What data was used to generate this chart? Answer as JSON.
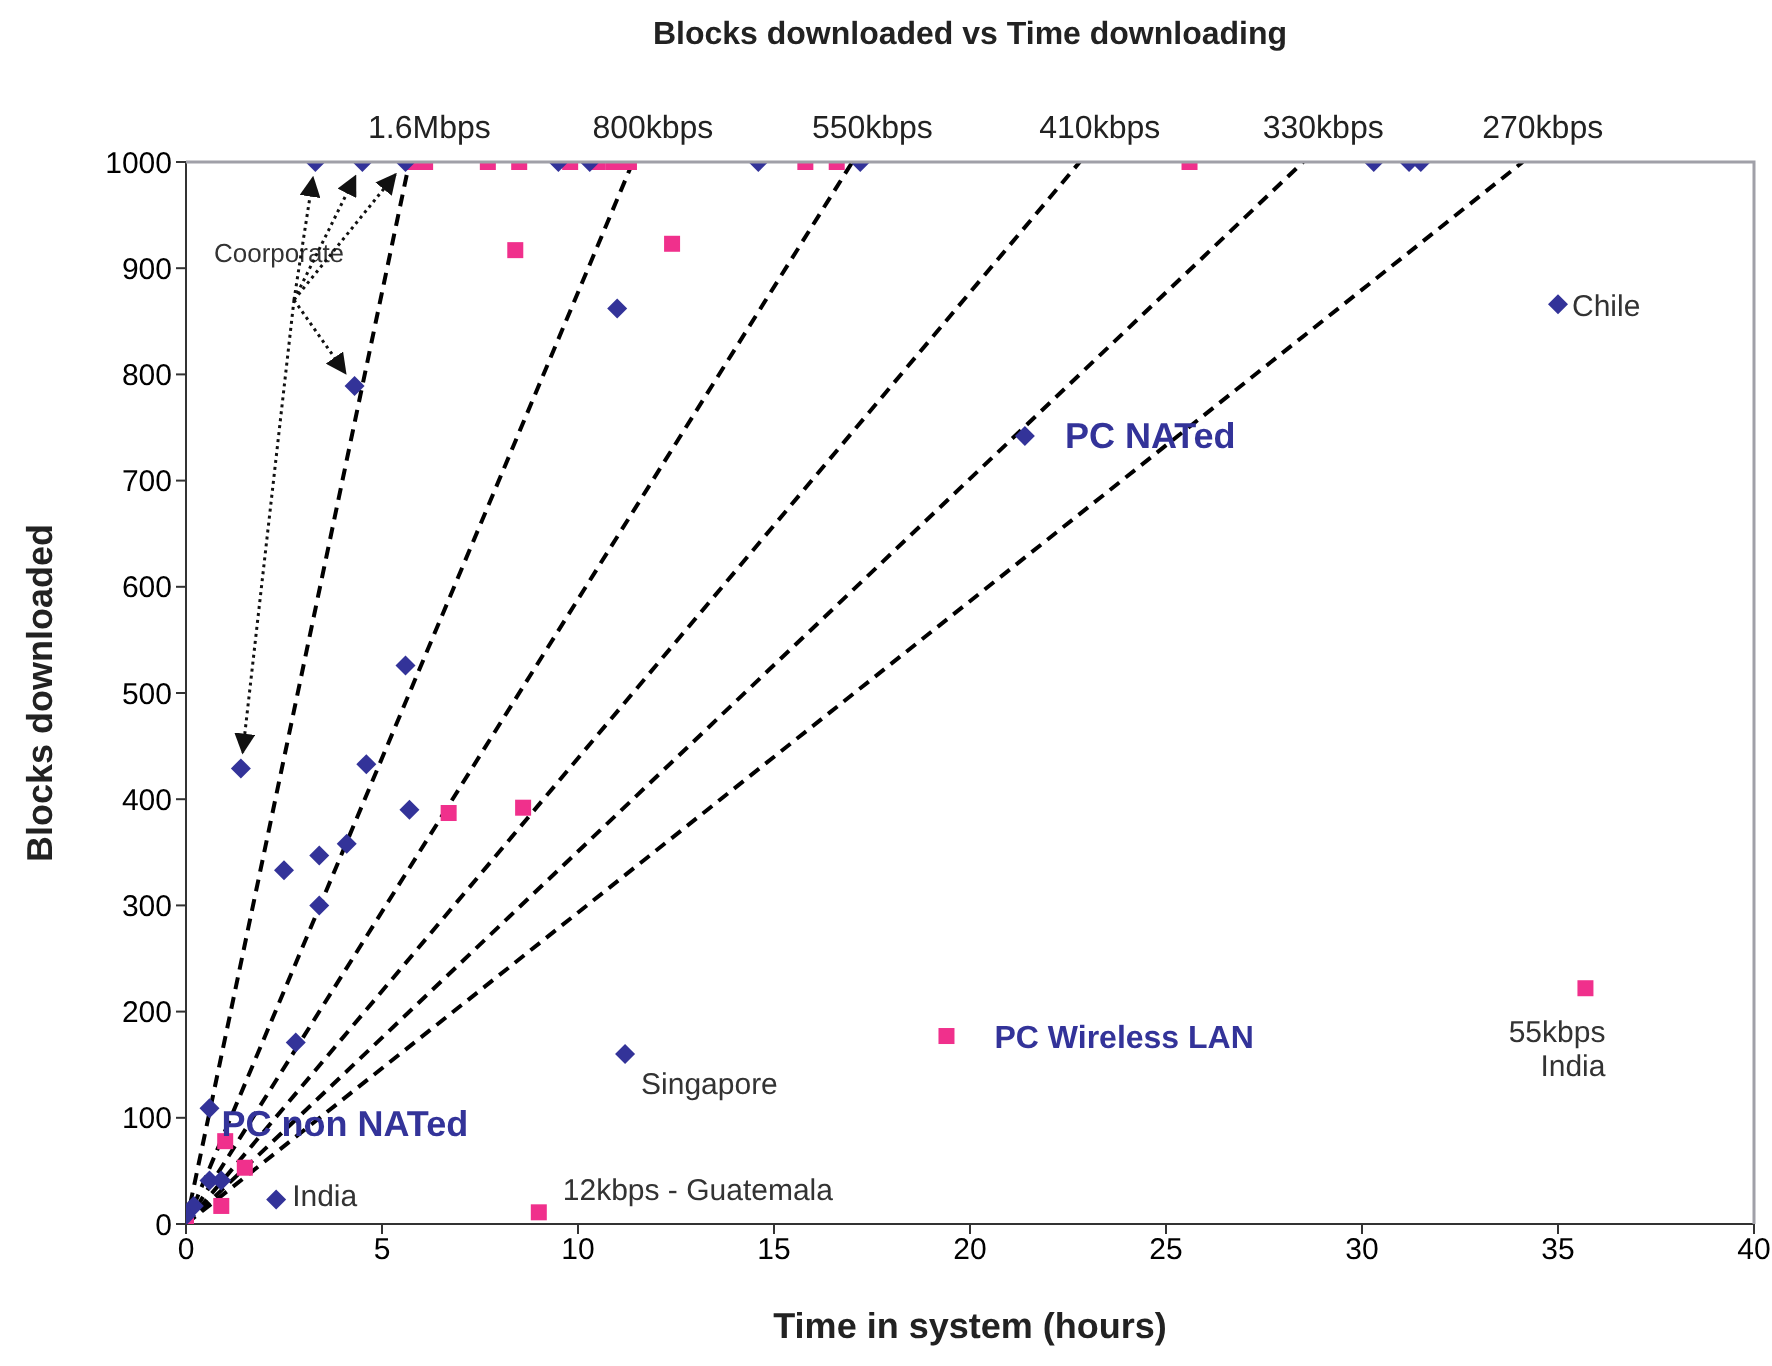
{
  "chart_data": {
    "type": "scatter",
    "title": "Blocks downloaded vs Time downloading",
    "xlabel": "Time in system (hours)",
    "ylabel": "Blocks downloaded",
    "xlim": [
      0,
      40
    ],
    "xticks": [
      0,
      5,
      10,
      15,
      20,
      25,
      30,
      35,
      40
    ],
    "ylim": [
      0,
      1000
    ],
    "yticks": [
      0,
      100,
      200,
      300,
      400,
      500,
      600,
      700,
      800,
      900,
      1000
    ],
    "grid": false,
    "legend": false,
    "series": [
      {
        "type": "line",
        "name": "1.6Mbps",
        "color": "#000000",
        "line_style": "dashed",
        "marker": "none",
        "x": [
          0,
          5.7
        ],
        "values": [
          0,
          1000
        ]
      },
      {
        "type": "line",
        "name": "800kbps",
        "color": "#000000",
        "line_style": "dashed",
        "marker": "none",
        "x": [
          0,
          11.4
        ],
        "values": [
          0,
          1000
        ]
      },
      {
        "type": "line",
        "name": "550kbps",
        "color": "#000000",
        "line_style": "dashed",
        "marker": "none",
        "x": [
          0,
          17.0
        ],
        "values": [
          0,
          1000
        ]
      },
      {
        "type": "line",
        "name": "410kbps",
        "color": "#000000",
        "line_style": "dashed",
        "marker": "none",
        "x": [
          0,
          22.8
        ],
        "values": [
          0,
          1000
        ]
      },
      {
        "type": "line",
        "name": "330kbps",
        "color": "#000000",
        "line_style": "dashed",
        "marker": "none",
        "x": [
          0,
          28.5
        ],
        "values": [
          0,
          1000
        ]
      },
      {
        "type": "line",
        "name": "270kbps",
        "color": "#000000",
        "line_style": "dashed",
        "marker": "none",
        "x": [
          0,
          34.1
        ],
        "values": [
          0,
          1000
        ]
      },
      {
        "color": "#f0308c",
        "marker": "square",
        "x": [
          5.8,
          6.1,
          7.7,
          8.5,
          9.8,
          10.5,
          10.9,
          11.3,
          15.8,
          16.6,
          25.6,
          8.4,
          12.4,
          6.7,
          8.6,
          1.0,
          1.5,
          0.9,
          9.0,
          19.4,
          35.7,
          0.0
        ],
        "values": [
          1000,
          1000,
          1000,
          1000,
          1000,
          1000,
          1000,
          1000,
          1000,
          1000,
          1000,
          917,
          923,
          387,
          392,
          78,
          53,
          17,
          11,
          177,
          222,
          0
        ]
      },
      {
        "color": "#333399",
        "marker": "diamond",
        "x": [
          3.3,
          4.5,
          5.6,
          9.5,
          10.3,
          14.6,
          17.2,
          30.3,
          31.2,
          31.5,
          11.0,
          4.3,
          35.0,
          21.4,
          5.6,
          1.4,
          4.6,
          5.7,
          2.5,
          3.4,
          4.1,
          3.4,
          2.8,
          11.2,
          0.6,
          2.3,
          0.6,
          0.9,
          0.2,
          0.0
        ],
        "values": [
          1000,
          1000,
          1000,
          1000,
          1000,
          1000,
          1000,
          1000,
          1000,
          1000,
          862,
          789,
          866,
          742,
          526,
          429,
          433,
          390,
          333,
          347,
          358,
          300,
          171,
          160,
          109,
          23,
          41,
          41,
          17,
          8
        ]
      }
    ],
    "annotations": [
      {
        "text": "Coorporate",
        "x": 1.4,
        "y": 429
      },
      {
        "text": "PC non NATed",
        "x": 0.6,
        "y": 109
      },
      {
        "text": "PC NATed",
        "x": 21.4,
        "y": 742
      },
      {
        "text": "PC Wireless LAN",
        "x": 19.4,
        "y": 177
      },
      {
        "text": "Chile",
        "x": 35.0,
        "y": 866
      },
      {
        "text": "Singapore",
        "x": 11.2,
        "y": 160
      },
      {
        "text": "India",
        "x": 2.3,
        "y": 23
      },
      {
        "text": "12kbps - Guatemala",
        "x": 9.0,
        "y": 11
      },
      {
        "text": "55kbps\nIndia",
        "x": 35.7,
        "y": 222
      }
    ]
  }
}
